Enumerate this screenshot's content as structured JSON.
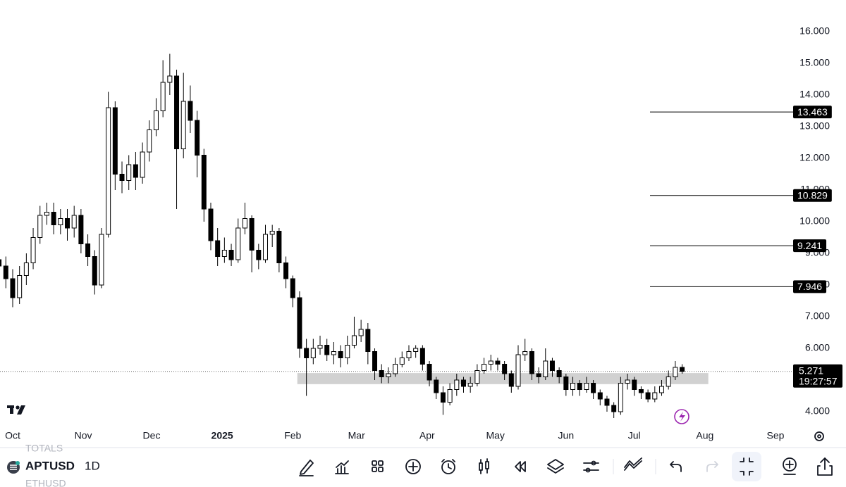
{
  "chart_data": {
    "type": "candlestick",
    "x": [
      -6,
      -3,
      0,
      3,
      6,
      9,
      12,
      15,
      18,
      21,
      24,
      27,
      30,
      33,
      36,
      39,
      42,
      45,
      48,
      51,
      54,
      57,
      60,
      63,
      66,
      69,
      72,
      75,
      78,
      81,
      84,
      87,
      90,
      93,
      96,
      99,
      102,
      105,
      108,
      111,
      114,
      117,
      120,
      123,
      126,
      129,
      132,
      135,
      138,
      141,
      144,
      147,
      150,
      153,
      156,
      159,
      162,
      165,
      168,
      171,
      174,
      177,
      180,
      183,
      186,
      189,
      192,
      195,
      198,
      201,
      204,
      207,
      210,
      213,
      216,
      219,
      222,
      225,
      228,
      231,
      234,
      237,
      240,
      243,
      246,
      249,
      252,
      255,
      258,
      261,
      264,
      267,
      270,
      273,
      276,
      279,
      282,
      285,
      288,
      291,
      294
    ],
    "open": [
      8.8,
      8.6,
      8.2,
      7.6,
      8.3,
      8.7,
      9.5,
      10.2,
      10.3,
      9.9,
      10.1,
      9.8,
      10.2,
      9.3,
      8.9,
      8.0,
      9.6,
      13.6,
      11.5,
      11.3,
      11.8,
      11.4,
      12.2,
      12.9,
      13.5,
      14.4,
      14.6,
      12.3,
      13.8,
      13.2,
      12.1,
      10.4,
      9.4,
      8.9,
      9.1,
      8.8,
      9.8,
      10.1,
      9.1,
      8.8,
      9.6,
      9.7,
      8.7,
      8.2,
      7.6,
      6.0,
      5.7,
      6.0,
      6.1,
      5.8,
      5.9,
      5.7,
      6.1,
      6.4,
      6.6,
      5.9,
      5.3,
      5.1,
      5.2,
      5.5,
      5.7,
      5.9,
      6.0,
      5.5,
      5.0,
      4.6,
      4.3,
      4.7,
      5.0,
      4.8,
      4.9,
      5.3,
      5.5,
      5.6,
      5.5,
      5.2,
      4.8,
      5.8,
      5.9,
      5.2,
      5.1,
      5.6,
      5.3,
      5.1,
      4.7,
      4.9,
      4.7,
      4.9,
      4.6,
      4.4,
      4.2,
      4.0,
      4.9,
      5.0,
      4.7,
      4.6,
      4.4,
      4.6,
      4.8,
      5.1,
      5.4
    ],
    "high": [
      9.1,
      8.9,
      8.5,
      8.6,
      9.0,
      9.8,
      10.5,
      10.6,
      10.6,
      10.4,
      10.4,
      10.5,
      10.4,
      9.6,
      9.1,
      9.8,
      14.1,
      13.8,
      11.9,
      12.1,
      12.2,
      12.5,
      13.2,
      13.9,
      15.1,
      15.3,
      14.8,
      14.7,
      14.3,
      13.5,
      12.3,
      10.6,
      9.8,
      9.5,
      9.3,
      10.1,
      10.6,
      10.2,
      9.3,
      9.9,
      9.9,
      9.8,
      8.9,
      8.3,
      7.8,
      6.3,
      6.3,
      6.4,
      6.3,
      6.2,
      6.1,
      6.4,
      7.0,
      6.9,
      6.8,
      6.0,
      5.5,
      5.4,
      5.7,
      5.9,
      6.1,
      6.1,
      6.1,
      5.6,
      5.1,
      4.8,
      4.9,
      5.2,
      5.1,
      5.1,
      5.5,
      5.7,
      5.8,
      5.7,
      5.6,
      5.3,
      6.1,
      6.3,
      6.0,
      5.4,
      6.0,
      5.7,
      5.4,
      5.2,
      5.1,
      5.0,
      5.1,
      5.0,
      4.7,
      4.5,
      4.3,
      5.1,
      5.2,
      5.1,
      4.8,
      4.7,
      4.8,
      5.0,
      5.3,
      5.6,
      5.5
    ],
    "low": [
      8.3,
      7.9,
      7.3,
      7.4,
      8.0,
      8.5,
      9.3,
      9.9,
      9.6,
      9.6,
      9.4,
      9.5,
      9.0,
      8.6,
      7.7,
      7.9,
      9.5,
      11.0,
      10.9,
      11.0,
      11.0,
      11.2,
      11.9,
      12.7,
      13.3,
      14.0,
      10.4,
      12.0,
      12.8,
      11.4,
      10.0,
      9.1,
      8.6,
      8.7,
      8.6,
      8.7,
      9.6,
      8.4,
      8.5,
      8.7,
      9.2,
      8.4,
      7.9,
      7.3,
      5.7,
      4.5,
      5.5,
      5.8,
      5.6,
      5.5,
      5.4,
      5.5,
      6.0,
      6.2,
      5.5,
      5.0,
      4.9,
      4.9,
      5.1,
      5.4,
      5.6,
      5.7,
      5.3,
      4.8,
      4.4,
      3.9,
      4.2,
      4.5,
      4.6,
      4.6,
      4.8,
      5.2,
      5.3,
      5.3,
      5.0,
      4.6,
      4.7,
      5.6,
      5.0,
      4.9,
      5.0,
      5.1,
      4.9,
      4.5,
      4.5,
      4.5,
      4.6,
      4.4,
      4.2,
      4.0,
      3.8,
      3.9,
      4.7,
      4.5,
      4.4,
      4.3,
      4.3,
      4.5,
      4.7,
      5.0,
      5.2
    ],
    "close": [
      8.6,
      8.2,
      7.6,
      8.3,
      8.7,
      9.5,
      10.2,
      10.3,
      9.9,
      10.1,
      9.8,
      10.2,
      9.3,
      8.9,
      8.0,
      9.6,
      13.6,
      11.5,
      11.3,
      11.8,
      11.4,
      12.2,
      12.9,
      13.5,
      14.4,
      14.6,
      12.3,
      13.8,
      13.2,
      12.1,
      10.4,
      9.4,
      8.9,
      9.1,
      8.8,
      9.8,
      10.1,
      9.1,
      8.8,
      9.6,
      9.7,
      8.7,
      8.2,
      7.6,
      6.0,
      5.7,
      6.0,
      6.1,
      5.8,
      5.9,
      5.7,
      6.1,
      6.4,
      6.6,
      5.9,
      5.3,
      5.1,
      5.2,
      5.5,
      5.7,
      5.9,
      6.0,
      5.5,
      5.0,
      4.6,
      4.3,
      4.7,
      5.0,
      4.8,
      4.9,
      5.3,
      5.5,
      5.6,
      5.5,
      5.2,
      4.8,
      5.8,
      5.9,
      5.2,
      5.1,
      5.6,
      5.3,
      5.1,
      4.7,
      4.9,
      4.7,
      4.9,
      4.6,
      4.4,
      4.2,
      4.0,
      4.9,
      5.0,
      4.7,
      4.6,
      4.4,
      4.6,
      4.8,
      5.1,
      5.4,
      5.271
    ],
    "up_color": "#ffffff",
    "down_color": "#000000",
    "edge_color": "#000000",
    "xlim": [
      -5.57,
      341.2
    ],
    "xticks": [
      {
        "value": 0,
        "label": "Oct"
      },
      {
        "value": 31,
        "label": "Nov"
      },
      {
        "value": 61,
        "label": "Dec"
      },
      {
        "value": 92,
        "label": "2025"
      },
      {
        "value": 123,
        "label": "Feb"
      },
      {
        "value": 151,
        "label": "Mar"
      },
      {
        "value": 182,
        "label": "Apr"
      },
      {
        "value": 212,
        "label": "May"
      },
      {
        "value": 243,
        "label": "Jun"
      },
      {
        "value": 273,
        "label": "Jul"
      },
      {
        "value": 304,
        "label": "Aug"
      },
      {
        "value": 335,
        "label": "Sep"
      }
    ],
    "ylim": [
      3.6,
      17.0
    ],
    "yticks": [
      {
        "value": 4,
        "label": "4.000"
      },
      {
        "value": 5,
        "label": "5.000"
      },
      {
        "value": 6,
        "label": "6.000"
      },
      {
        "value": 7,
        "label": "7.000"
      },
      {
        "value": 8,
        "label": "8.000"
      },
      {
        "value": 9,
        "label": "9.000"
      },
      {
        "value": 10,
        "label": "10.000"
      },
      {
        "value": 11,
        "label": "11.000"
      },
      {
        "value": 12,
        "label": "12.000"
      },
      {
        "value": 13,
        "label": "13.000"
      },
      {
        "value": 14,
        "label": "14.000"
      },
      {
        "value": 15,
        "label": "15.000"
      },
      {
        "value": 16,
        "label": "16.000"
      }
    ],
    "levels": [
      13.463,
      10.829,
      9.241,
      7.946
    ],
    "zone": {
      "low": 4.87,
      "high": 5.22,
      "start": 125,
      "end": 305.5
    },
    "last_price": 5.271,
    "countdown": "19:27:57"
  },
  "toolbar": {
    "watchlist_above": "TOTALS",
    "symbol": "APTUSD",
    "interval": "1D",
    "watchlist_below": "ETHUSD"
  }
}
